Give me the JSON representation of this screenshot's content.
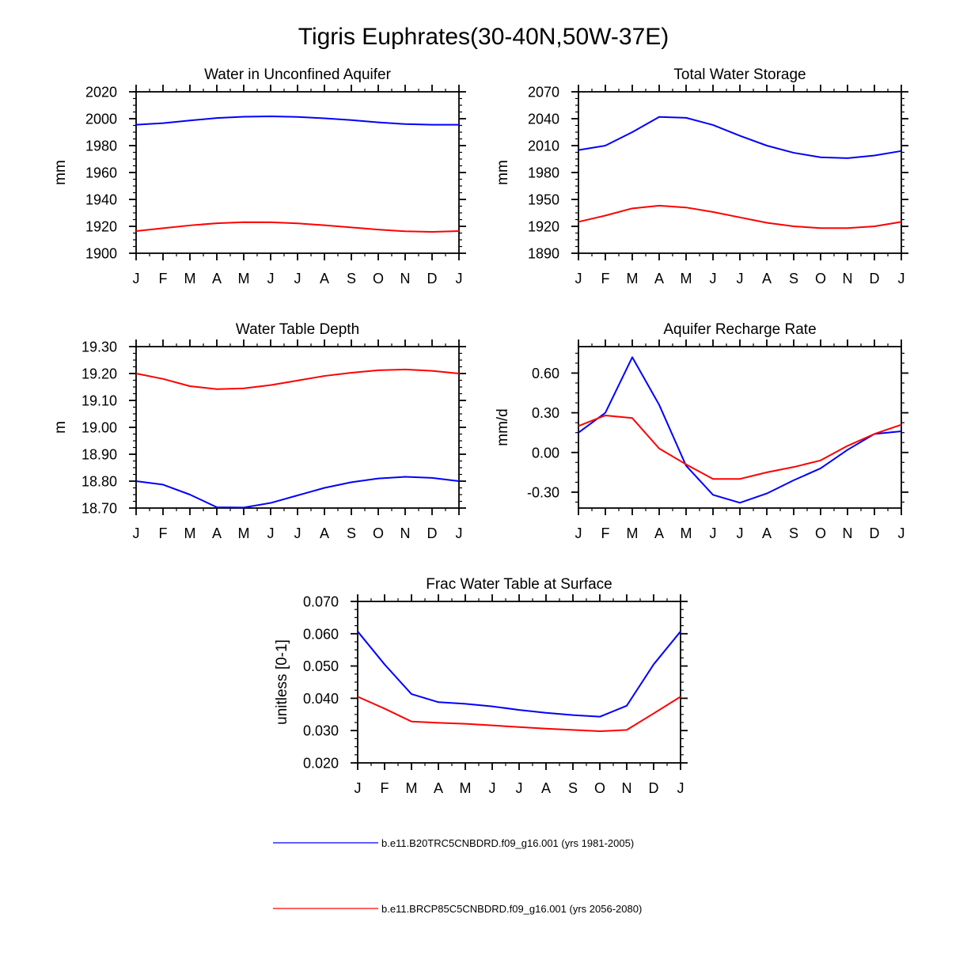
{
  "page_title": "Tigris Euphrates(30-40N,50W-37E)",
  "colors": {
    "historical": "#0000ff",
    "future": "#ff0000",
    "axis": "#000000"
  },
  "legend": [
    {
      "label": "b.e11.B20TRC5CNBDRD.f09_g16.001 (yrs 1981-2005)",
      "color": "#0000ff"
    },
    {
      "label": "b.e11.BRCP85C5CNBDRD.f09_g16.001 (yrs 2056-2080)",
      "color": "#ff0000"
    }
  ],
  "chart_data": [
    {
      "id": "unconfined",
      "type": "line",
      "title": "Water in Unconfined Aquifer",
      "ylabel": "mm",
      "xlabel": "",
      "categories": [
        "J",
        "F",
        "M",
        "A",
        "M",
        "J",
        "J",
        "A",
        "S",
        "O",
        "N",
        "D",
        "J"
      ],
      "ylim": [
        1900,
        2020
      ],
      "yticks": [
        1900,
        1920,
        1940,
        1960,
        1980,
        2000,
        2020
      ],
      "yticklabels": [
        "1900",
        "1920",
        "1940",
        "1960",
        "1980",
        "2000",
        "2020"
      ],
      "yminor": 5,
      "series": [
        {
          "name": "b.e11.B20TRC5CNBDRD.f09_g16.001 (yrs 1981-2005)",
          "color": "#0000ff",
          "values": [
            1995.5,
            1996.7,
            1998.7,
            2000.5,
            2001.5,
            2001.8,
            2001.3,
            2000.3,
            1999,
            1997.3,
            1996,
            1995.5,
            1995.5
          ]
        },
        {
          "name": "b.e11.BRCP85C5CNBDRD.f09_g16.001 (yrs 2056-2080)",
          "color": "#ff0000",
          "values": [
            1916.5,
            1918.6,
            1920.7,
            1922.3,
            1923.1,
            1923,
            1922.2,
            1920.8,
            1919.2,
            1917.6,
            1916.3,
            1915.9,
            1916.5
          ]
        }
      ]
    },
    {
      "id": "tws",
      "type": "line",
      "title": "Total Water Storage",
      "ylabel": "mm",
      "xlabel": "",
      "categories": [
        "J",
        "F",
        "M",
        "A",
        "M",
        "J",
        "J",
        "A",
        "S",
        "O",
        "N",
        "D",
        "J"
      ],
      "ylim": [
        1890,
        2070
      ],
      "yticks": [
        1890,
        1920,
        1950,
        1980,
        2010,
        2040,
        2070
      ],
      "yticklabels": [
        "1890",
        "1920",
        "1950",
        "1980",
        "2010",
        "2040",
        "2070"
      ],
      "yminor": 7.5,
      "series": [
        {
          "name": "b.e11.B20TRC5CNBDRD.f09_g16.001 (yrs 1981-2005)",
          "color": "#0000ff",
          "values": [
            2005,
            2010,
            2025,
            2042,
            2041,
            2033,
            2021,
            2010,
            2002,
            1997,
            1996,
            1999,
            2004
          ]
        },
        {
          "name": "b.e11.BRCP85C5CNBDRD.f09_g16.001 (yrs 2056-2080)",
          "color": "#ff0000",
          "values": [
            1925,
            1932,
            1940,
            1943,
            1941,
            1936,
            1930,
            1924,
            1920,
            1918,
            1918,
            1920,
            1925
          ]
        }
      ]
    },
    {
      "id": "wtd",
      "type": "line",
      "title": "Water Table Depth",
      "ylabel": "m",
      "xlabel": "",
      "categories": [
        "J",
        "F",
        "M",
        "A",
        "M",
        "J",
        "J",
        "A",
        "S",
        "O",
        "N",
        "D",
        "J"
      ],
      "ylim": [
        18.7,
        19.3
      ],
      "yticks": [
        18.7,
        18.8,
        18.9,
        19.0,
        19.1,
        19.2,
        19.3
      ],
      "yticklabels": [
        "18.70",
        "18.80",
        "18.90",
        "19.00",
        "19.10",
        "19.20",
        "19.30"
      ],
      "yminor": 0.025,
      "series": [
        {
          "name": "b.e11.B20TRC5CNBDRD.f09_g16.001 (yrs 1981-2005)",
          "color": "#0000ff",
          "values": [
            18.8,
            18.787,
            18.75,
            18.703,
            18.702,
            18.719,
            18.747,
            18.775,
            18.796,
            18.81,
            18.816,
            18.812,
            18.8
          ]
        },
        {
          "name": "b.e11.BRCP85C5CNBDRD.f09_g16.001 (yrs 2056-2080)",
          "color": "#ff0000",
          "values": [
            19.2,
            19.18,
            19.153,
            19.142,
            19.145,
            19.157,
            19.174,
            19.191,
            19.203,
            19.212,
            19.215,
            19.21,
            19.2
          ]
        }
      ]
    },
    {
      "id": "recharge",
      "type": "line",
      "title": "Aquifer Recharge Rate",
      "ylabel": "mm/d",
      "xlabel": "",
      "categories": [
        "J",
        "F",
        "M",
        "A",
        "M",
        "J",
        "J",
        "A",
        "S",
        "O",
        "N",
        "D",
        "J"
      ],
      "ylim": [
        -0.42,
        0.8
      ],
      "yticks": [
        -0.3,
        0.0,
        0.3,
        0.6
      ],
      "yticklabels": [
        "-0.30",
        "0.00",
        "0.30",
        "0.60"
      ],
      "yminor": 0.075,
      "series": [
        {
          "name": "b.e11.B20TRC5CNBDRD.f09_g16.001 (yrs 1981-2005)",
          "color": "#0000ff",
          "values": [
            0.15,
            0.3,
            0.72,
            0.36,
            -0.1,
            -0.32,
            -0.38,
            -0.31,
            -0.21,
            -0.12,
            0.02,
            0.14,
            0.16
          ]
        },
        {
          "name": "b.e11.BRCP85C5CNBDRD.f09_g16.001 (yrs 2056-2080)",
          "color": "#ff0000",
          "values": [
            0.2,
            0.28,
            0.26,
            0.03,
            -0.09,
            -0.2,
            -0.2,
            -0.15,
            -0.11,
            -0.06,
            0.05,
            0.14,
            0.21
          ]
        }
      ]
    },
    {
      "id": "frac",
      "type": "line",
      "title": "Frac Water Table at Surface",
      "ylabel": "unitless [0-1]",
      "xlabel": "",
      "categories": [
        "J",
        "F",
        "M",
        "A",
        "M",
        "J",
        "J",
        "A",
        "S",
        "O",
        "N",
        "D",
        "J"
      ],
      "ylim": [
        0.02,
        0.07
      ],
      "yticks": [
        0.02,
        0.03,
        0.04,
        0.05,
        0.06,
        0.07
      ],
      "yticklabels": [
        "0.020",
        "0.030",
        "0.040",
        "0.050",
        "0.060",
        "0.070"
      ],
      "yminor": 0.0025,
      "series": [
        {
          "name": "b.e11.B20TRC5CNBDRD.f09_g16.001 (yrs 1981-2005)",
          "color": "#0000ff",
          "values": [
            0.0607,
            0.0505,
            0.0413,
            0.0388,
            0.0383,
            0.0375,
            0.0364,
            0.0355,
            0.0348,
            0.0343,
            0.0377,
            0.0505,
            0.0607
          ]
        },
        {
          "name": "b.e11.BRCP85C5CNBDRD.f09_g16.001 (yrs 2056-2080)",
          "color": "#ff0000",
          "values": [
            0.0405,
            0.0368,
            0.0328,
            0.0324,
            0.0321,
            0.0316,
            0.0311,
            0.0306,
            0.0302,
            0.0298,
            0.0302,
            0.0353,
            0.0405
          ]
        }
      ]
    }
  ]
}
